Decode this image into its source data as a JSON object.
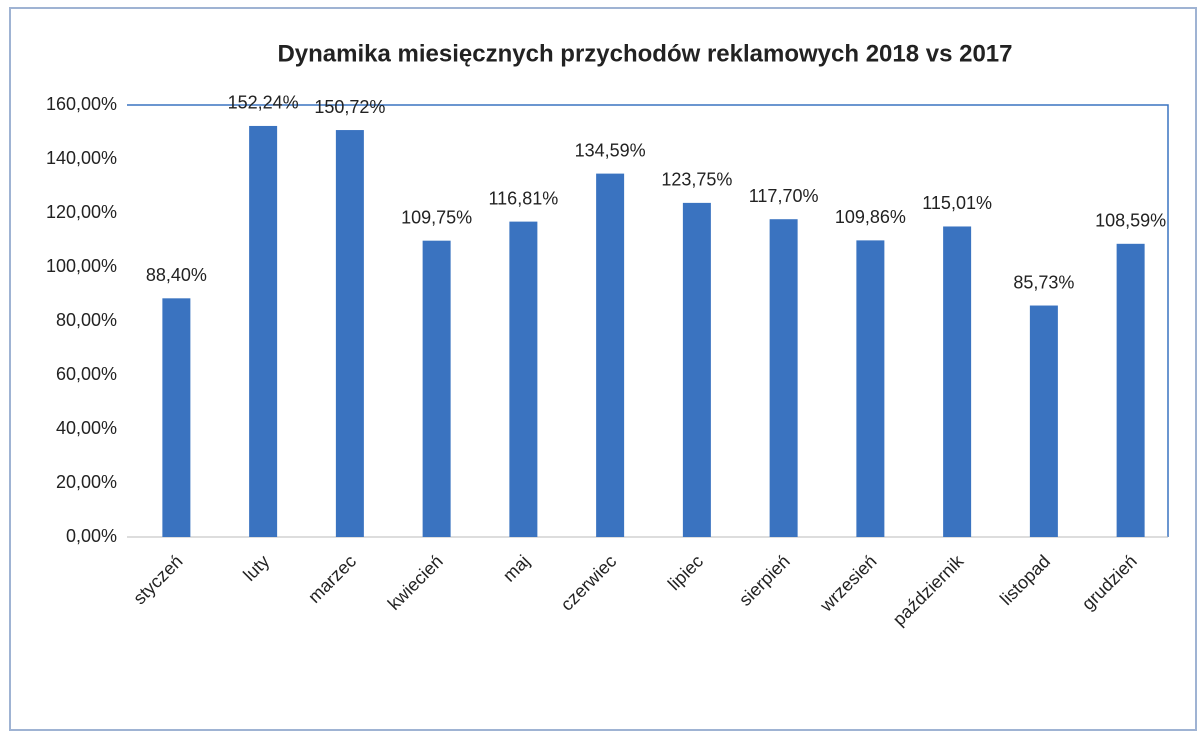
{
  "chart_data": {
    "type": "bar",
    "title": "Dynamika miesięcznych  przychodów reklamowych 2018 vs 2017",
    "categories": [
      "styczeń",
      "luty",
      "marzec",
      "kwiecień",
      "maj",
      "czerwiec",
      "lipiec",
      "sierpień",
      "wrzesień",
      "październik",
      "listopad",
      "grudzień"
    ],
    "values": [
      88.4,
      152.24,
      150.72,
      109.75,
      116.81,
      134.59,
      123.75,
      117.7,
      109.86,
      115.01,
      85.73,
      108.59
    ],
    "value_labels": [
      "88,40%",
      "152,24%",
      "150,72%",
      "109,75%",
      "116,81%",
      "134,59%",
      "123,75%",
      "117,70%",
      "109,86%",
      "115,01%",
      "85,73%",
      "108,59%"
    ],
    "color": "#3a73c0",
    "ylim": [
      0,
      160
    ],
    "yticks": [
      {
        "value": 0,
        "label": "0,00%"
      },
      {
        "value": 20,
        "label": "20,00%"
      },
      {
        "value": 40,
        "label": "40,00%"
      },
      {
        "value": 60,
        "label": "60,00%"
      },
      {
        "value": 80,
        "label": "80,00%"
      },
      {
        "value": 100,
        "label": "100,00%"
      },
      {
        "value": 120,
        "label": "120,00%"
      },
      {
        "value": 140,
        "label": "140,00%"
      },
      {
        "value": 160,
        "label": "160,00%"
      }
    ],
    "grid": false
  }
}
